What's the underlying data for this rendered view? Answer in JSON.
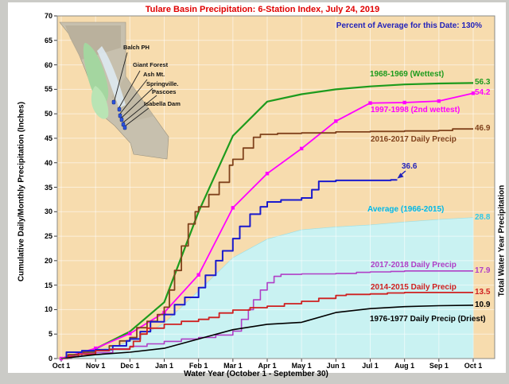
{
  "page": {
    "title": "Tulare Basin Precipitation: 6-Station Index, July 24, 2019",
    "percent_annotation": "Percent of Average for this Date: 130%"
  },
  "map": {
    "stations": [
      "Balch PH",
      "Giant Forest",
      "Ash Mt.",
      "Springville.",
      "Pascoes",
      "Isabella Dam"
    ]
  },
  "colors": {
    "title": "#e00000",
    "annotation_blue": "#2222bb",
    "plot_bg": "#f7dcae",
    "grid": "rgba(255,255,255,0.55)",
    "frame": "#cbcbc7",
    "plot_border": "#8a8a85"
  },
  "chart_data": {
    "type": "line",
    "title": "Tulare Basin Precipitation: 6-Station Index, July 24, 2019",
    "annotation": "Percent of Average for this Date: 130%",
    "xlabel": "Water Year (October 1 - September 30)",
    "ylabel_left": "Cumulative Daily/Monthly Precipitation (Inches)",
    "ylabel_right": "Total Water Year Precipitation",
    "x_ticks": [
      "Oct 1",
      "Nov 1",
      "Dec 1",
      "Jan 1",
      "Feb 1",
      "Mar 1",
      "Apr 1",
      "May 1",
      "Jun 1",
      "Jul 1",
      "Aug 1",
      "Sep 1",
      "Oct 1"
    ],
    "ylim": [
      0,
      70
    ],
    "y_tick_step": 5,
    "grid": true,
    "legend_position": "in-plot labels",
    "x_unit": "months since Oct 1",
    "area": {
      "id": "average",
      "name": "Average (1966-2015)",
      "fill": "#c9f2f2",
      "edge": "#9adfe6",
      "label_color": "#00b8e8",
      "final_value": 28.8,
      "points": [
        [
          0,
          0
        ],
        [
          1,
          1.5
        ],
        [
          2,
          3.4
        ],
        [
          3,
          7.2
        ],
        [
          4,
          13.8
        ],
        [
          5,
          20.6
        ],
        [
          6,
          24.4
        ],
        [
          7,
          26.3
        ],
        [
          8,
          26.9
        ],
        [
          9,
          27.3
        ],
        [
          10,
          27.9
        ],
        [
          11,
          28.4
        ],
        [
          12,
          28.8
        ]
      ]
    },
    "series": [
      {
        "id": "wy1968",
        "name": "1968-1969 (Wettest)",
        "color": "#1d9b1d",
        "style": "line",
        "width": 2.2,
        "final_value": 56.3,
        "points": [
          [
            0,
            0
          ],
          [
            1,
            2.0
          ],
          [
            2,
            5.5
          ],
          [
            3,
            11.5
          ],
          [
            4,
            30.0
          ],
          [
            5,
            45.5
          ],
          [
            6,
            52.5
          ],
          [
            7,
            54.0
          ],
          [
            8,
            55.0
          ],
          [
            9,
            55.6
          ],
          [
            10,
            56.0
          ],
          [
            11,
            56.2
          ],
          [
            12,
            56.3
          ]
        ]
      },
      {
        "id": "wy1997",
        "name": "1997-1998 (2nd wettest)",
        "color": "#ff00ff",
        "style": "line",
        "width": 1.8,
        "markers": true,
        "final_value": 54.2,
        "points": [
          [
            0,
            0
          ],
          [
            1,
            2.1
          ],
          [
            2,
            5.1
          ],
          [
            3,
            9.4
          ],
          [
            4,
            17.1
          ],
          [
            5,
            30.8
          ],
          [
            6,
            37.8
          ],
          [
            7,
            42.9
          ],
          [
            8,
            48.5
          ],
          [
            9,
            52.2
          ],
          [
            10,
            52.3
          ],
          [
            11,
            52.6
          ],
          [
            12,
            54.2
          ]
        ]
      },
      {
        "id": "wy2016",
        "name": "2016-2017 Daily Precip",
        "color": "#80421c",
        "style": "step",
        "width": 1.8,
        "final_value": 46.9,
        "points": [
          [
            0,
            0
          ],
          [
            0.2,
            0.8
          ],
          [
            0.5,
            1.3
          ],
          [
            1,
            1.6
          ],
          [
            1.4,
            2.6
          ],
          [
            1.7,
            3.6
          ],
          [
            2,
            4.3
          ],
          [
            2.2,
            6.3
          ],
          [
            2.5,
            7.6
          ],
          [
            2.8,
            9.0
          ],
          [
            3,
            10.5
          ],
          [
            3.15,
            14
          ],
          [
            3.3,
            18
          ],
          [
            3.5,
            23
          ],
          [
            3.7,
            27.5
          ],
          [
            3.9,
            30
          ],
          [
            4,
            31
          ],
          [
            4.3,
            33.5
          ],
          [
            4.6,
            36
          ],
          [
            4.9,
            39.5
          ],
          [
            5,
            40.7
          ],
          [
            5.3,
            43
          ],
          [
            5.6,
            45.2
          ],
          [
            5.8,
            45.8
          ],
          [
            6.3,
            46.0
          ],
          [
            7,
            46.1
          ],
          [
            8,
            46.3
          ],
          [
            9,
            46.4
          ],
          [
            10,
            46.5
          ],
          [
            11,
            46.6
          ],
          [
            11.4,
            46.9
          ],
          [
            12,
            46.9
          ]
        ]
      },
      {
        "id": "wy2018",
        "name": "",
        "annotation": "36.6",
        "color": "#1a1ace",
        "style": "step",
        "width": 2.0,
        "points": [
          [
            0,
            0
          ],
          [
            0.15,
            1.3
          ],
          [
            0.6,
            1.6
          ],
          [
            1,
            1.8
          ],
          [
            1.5,
            2.6
          ],
          [
            1.9,
            3.6
          ],
          [
            2,
            4.0
          ],
          [
            2.3,
            5.5
          ],
          [
            2.6,
            7.5
          ],
          [
            3,
            9.0
          ],
          [
            3.3,
            11
          ],
          [
            3.6,
            12.5
          ],
          [
            4,
            14.5
          ],
          [
            4.2,
            17
          ],
          [
            4.5,
            20
          ],
          [
            4.7,
            22
          ],
          [
            5,
            24.5
          ],
          [
            5.2,
            27
          ],
          [
            5.5,
            29.5
          ],
          [
            5.8,
            31
          ],
          [
            6,
            32
          ],
          [
            6.4,
            32.4
          ],
          [
            7,
            32.8
          ],
          [
            7.3,
            34.5
          ],
          [
            7.5,
            36.2
          ],
          [
            8,
            36.4
          ],
          [
            9,
            36.4
          ],
          [
            9.6,
            36.5
          ],
          [
            9.77,
            36.6
          ]
        ]
      },
      {
        "id": "wy2017",
        "name": "2017-2018 Daily Precip",
        "color": "#b03fc6",
        "style": "step",
        "width": 1.6,
        "final_value": 17.9,
        "points": [
          [
            0,
            0
          ],
          [
            0.3,
            0.5
          ],
          [
            0.6,
            1.0
          ],
          [
            1,
            1.2
          ],
          [
            1.5,
            2.0
          ],
          [
            2,
            2.5
          ],
          [
            2.5,
            3.0
          ],
          [
            3,
            3.5
          ],
          [
            3.5,
            4.0
          ],
          [
            4,
            4.3
          ],
          [
            4.5,
            4.8
          ],
          [
            5,
            5.6
          ],
          [
            5.25,
            8
          ],
          [
            5.45,
            10
          ],
          [
            5.6,
            12
          ],
          [
            5.8,
            14
          ],
          [
            6,
            15.5
          ],
          [
            6.2,
            16.8
          ],
          [
            6.4,
            17.2
          ],
          [
            7,
            17.3
          ],
          [
            8,
            17.4
          ],
          [
            8.6,
            17.6
          ],
          [
            9,
            17.7
          ],
          [
            9.6,
            17.8
          ],
          [
            10,
            17.9
          ],
          [
            12,
            17.9
          ]
        ]
      },
      {
        "id": "wy2014",
        "name": "2014-2015 Daily Precip",
        "color": "#cf2020",
        "style": "step",
        "width": 1.8,
        "final_value": 13.5,
        "points": [
          [
            0,
            0
          ],
          [
            0.2,
            0.4
          ],
          [
            0.5,
            0.9
          ],
          [
            1,
            1.6
          ],
          [
            1.4,
            1.9
          ],
          [
            2,
            2.4
          ],
          [
            2.1,
            3.5
          ],
          [
            2.3,
            5.0
          ],
          [
            2.5,
            6.2
          ],
          [
            3,
            7.0
          ],
          [
            3.5,
            7.6
          ],
          [
            4,
            8.0
          ],
          [
            4.3,
            8.4
          ],
          [
            4.6,
            9.3
          ],
          [
            5,
            9.9
          ],
          [
            5.5,
            10.4
          ],
          [
            6,
            10.7
          ],
          [
            6.5,
            11.2
          ],
          [
            7,
            11.7
          ],
          [
            7.5,
            12.3
          ],
          [
            8,
            12.9
          ],
          [
            8.3,
            13.1
          ],
          [
            9,
            13.2
          ],
          [
            9.5,
            13.4
          ],
          [
            10,
            13.5
          ],
          [
            12,
            13.5
          ]
        ]
      },
      {
        "id": "wy1976",
        "name": "1976-1977 Daily Precip (Driest)",
        "color": "#000000",
        "style": "line",
        "width": 1.6,
        "final_value": 10.9,
        "points": [
          [
            0,
            0
          ],
          [
            1,
            0.8
          ],
          [
            2,
            1.3
          ],
          [
            3,
            2.1
          ],
          [
            4,
            4.0
          ],
          [
            5,
            5.9
          ],
          [
            6,
            7.0
          ],
          [
            7,
            7.4
          ],
          [
            8,
            9.4
          ],
          [
            9,
            10.2
          ],
          [
            10,
            10.6
          ],
          [
            11,
            10.8
          ],
          [
            12,
            10.9
          ]
        ]
      }
    ]
  }
}
